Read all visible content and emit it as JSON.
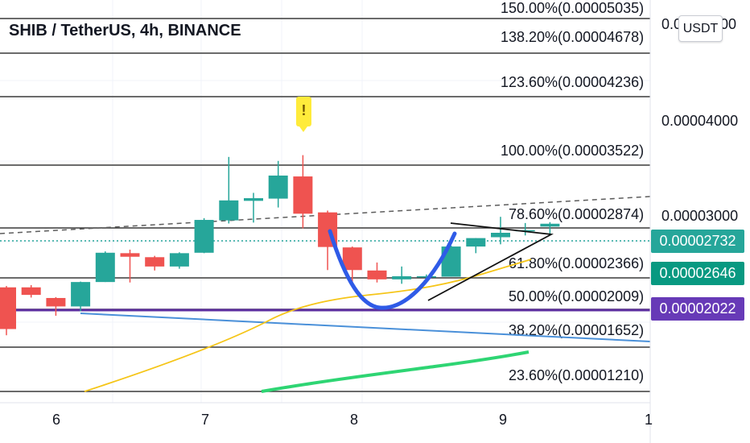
{
  "symbol_title": "SHIB / TetherUS, 4h, BINANCE",
  "currency_button": "USDT",
  "price_axis": {
    "top_label_partial": "0.0",
    "top_label_tail": "00",
    "labels": [
      "0.00004000",
      "0.00003000"
    ]
  },
  "price_badges": [
    {
      "label": "0.00002732",
      "color": "#26a69a"
    },
    {
      "label": "0.00002646",
      "color": "#089981"
    },
    {
      "label": "0.00002022",
      "color": "#673ab7"
    }
  ],
  "fib_levels": [
    {
      "label": "150.00%(0.00005035)"
    },
    {
      "label": "138.20%(0.00004678)"
    },
    {
      "label": "123.60%(0.00004236)"
    },
    {
      "label": "100.00%(0.00003522)"
    },
    {
      "label": "78.60%(0.00002874)"
    },
    {
      "label": "61.80%(0.00002366)"
    },
    {
      "label": "50.00%(0.00002009)"
    },
    {
      "label": "38.20%(0.00001652)"
    },
    {
      "label": "23.60%(0.00001210)"
    }
  ],
  "time_axis": {
    "labels": [
      "6",
      "7",
      "8",
      "9",
      "1"
    ]
  },
  "alert_marker": "!",
  "colors": {
    "up": "#26a69a",
    "down": "#ef5350",
    "ma_yellow": "#f5c518",
    "ma_green": "#2ed573",
    "trend_blue": "#4a90d9",
    "cup_blue": "#2f5be7",
    "support_purple": "#5b2d9e"
  },
  "chart_data": {
    "type": "candlestick",
    "title": "SHIB / TetherUS, 4h, BINANCE",
    "x_tick_labels": [
      "6",
      "7",
      "8",
      "9",
      "1"
    ],
    "y_tick_labels": [
      "0.00004000",
      "0.00003000"
    ],
    "candles": [
      {
        "open": 2.015e-05,
        "high": 2.03e-05,
        "low": 1.475e-05,
        "close": 1.545e-05
      },
      {
        "open": 2.015e-05,
        "high": 2.04e-05,
        "low": 1.9e-05,
        "close": 1.93e-05
      },
      {
        "open": 1.895e-05,
        "high": 1.905e-05,
        "low": 1.695e-05,
        "close": 1.8e-05
      },
      {
        "open": 1.8e-05,
        "high": 2.08e-05,
        "low": 1.745e-05,
        "close": 2.075e-05
      },
      {
        "open": 2.075e-05,
        "high": 2.42e-05,
        "low": 2.075e-05,
        "close": 2.405e-05
      },
      {
        "open": 2.4e-05,
        "high": 2.44e-05,
        "low": 2.07e-05,
        "close": 2.36e-05
      },
      {
        "open": 2.355e-05,
        "high": 2.37e-05,
        "low": 2.205e-05,
        "close": 2.25e-05
      },
      {
        "open": 2.25e-05,
        "high": 2.41e-05,
        "low": 2.225e-05,
        "close": 2.4e-05
      },
      {
        "open": 2.405e-05,
        "high": 2.795e-05,
        "low": 2.4e-05,
        "close": 2.775e-05
      },
      {
        "open": 2.77e-05,
        "high": 3.485e-05,
        "low": 2.735e-05,
        "close": 2.995e-05
      },
      {
        "open": 2.99e-05,
        "high": 3.08e-05,
        "low": 2.745e-05,
        "close": 3.02e-05
      },
      {
        "open": 3.015e-05,
        "high": 3.44e-05,
        "low": 2.915e-05,
        "close": 3.275e-05
      },
      {
        "open": 3.265e-05,
        "high": 3.505e-05,
        "low": 2.68e-05,
        "close": 2.845e-05
      },
      {
        "open": 2.86e-05,
        "high": 2.88e-05,
        "low": 2.21e-05,
        "close": 2.47e-05
      },
      {
        "open": 2.465e-05,
        "high": 2.475e-05,
        "low": 2.07e-05,
        "close": 2.21e-05
      },
      {
        "open": 2.205e-05,
        "high": 2.295e-05,
        "low": 2.07e-05,
        "close": 2.105e-05
      },
      {
        "open": 2.105e-05,
        "high": 2.25e-05,
        "low": 2.055e-05,
        "close": 2.14e-05
      },
      {
        "open": 2.13e-05,
        "high": 2.16e-05,
        "low": 2.065e-05,
        "close": 2.14e-05
      },
      {
        "open": 2.135e-05,
        "high": 2.485e-05,
        "low": 2.135e-05,
        "close": 2.475e-05
      },
      {
        "open": 2.475e-05,
        "high": 2.57e-05,
        "low": 2.4e-05,
        "close": 2.57e-05
      },
      {
        "open": 2.58e-05,
        "high": 2.81e-05,
        "low": 2.5e-05,
        "close": 2.63e-05
      },
      {
        "open": 2.655e-05,
        "high": 2.74e-05,
        "low": 2.6e-05,
        "close": 2.66e-05
      },
      {
        "open": 2.7e-05,
        "high": 2.75e-05,
        "low": 2.62e-05,
        "close": 2.732e-05
      }
    ]
  }
}
